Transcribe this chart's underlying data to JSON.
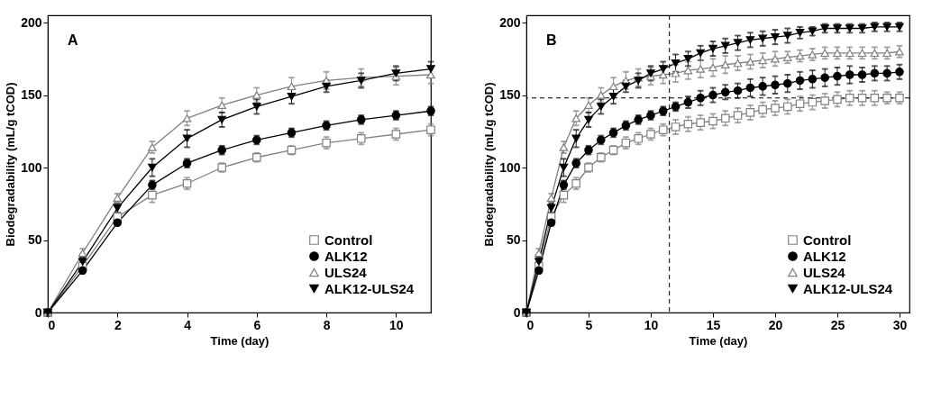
{
  "chart_data": [
    {
      "type": "line",
      "annotations": [
        "A"
      ],
      "xlabel": "Time (day)",
      "ylabel": "Biodegradability (mL/g tCOD)",
      "x": [
        0,
        1,
        2,
        3,
        4,
        5,
        6,
        7,
        8,
        9,
        10,
        11
      ],
      "xlim": [
        0,
        11
      ],
      "xticks": [
        0,
        2,
        4,
        6,
        8,
        10
      ],
      "ylim": [
        0,
        205
      ],
      "yticks": [
        0,
        50,
        100,
        150,
        200
      ],
      "grid": false,
      "legend": "bottom right",
      "line_style": "solid",
      "series": [
        {
          "name": "Control",
          "color": "#808080",
          "marker": "square",
          "values": [
            0,
            32,
            66,
            81,
            89,
            100,
            107,
            112,
            117,
            120,
            123,
            126
          ],
          "errors": [
            null,
            3,
            3,
            5,
            4,
            3,
            3,
            3,
            4,
            4,
            4,
            4
          ]
        },
        {
          "name": "ALK12",
          "color": "#000000",
          "marker": "circle",
          "values": [
            0,
            29,
            62,
            88,
            103,
            112,
            119,
            124,
            129,
            133,
            136,
            139
          ],
          "errors": [
            null,
            2,
            2,
            3,
            3,
            3,
            3,
            3,
            3,
            3,
            3,
            3
          ]
        },
        {
          "name": "ULS24",
          "color": "#808080",
          "marker": "triangle",
          "values": [
            0,
            41,
            79,
            114,
            134,
            143,
            150,
            156,
            160,
            162,
            163,
            164
          ],
          "errors": [
            null,
            3,
            3,
            4,
            5,
            5,
            5,
            6,
            6,
            6,
            6,
            6
          ]
        },
        {
          "name": "ALK12-ULS24",
          "color": "#000000",
          "marker": "triangle-down",
          "values": [
            0,
            35,
            72,
            100,
            120,
            133,
            142,
            149,
            156,
            160,
            165,
            168
          ],
          "errors": [
            null,
            3,
            3,
            6,
            6,
            5,
            5,
            5,
            4,
            5,
            5,
            5
          ]
        }
      ]
    },
    {
      "type": "line",
      "annotations": [
        "B"
      ],
      "xlabel": "Time (day)",
      "ylabel": "Biodegradability (mL/g tCOD)",
      "x": [
        0,
        1,
        2,
        3,
        4,
        5,
        6,
        7,
        8,
        9,
        10,
        11,
        12,
        13,
        14,
        15,
        16,
        17,
        18,
        19,
        20,
        21,
        22,
        23,
        24,
        25,
        26,
        27,
        28,
        29,
        30
      ],
      "xlim": [
        0,
        30.8
      ],
      "xticks": [
        0,
        5,
        10,
        15,
        20,
        25,
        30
      ],
      "ylim": [
        0,
        205
      ],
      "yticks": [
        0,
        50,
        100,
        150,
        200
      ],
      "grid": false,
      "legend": "bottom right",
      "line_style": "solid",
      "ref_lines": [
        {
          "axis": "y",
          "value": 148,
          "line_style": "dashed",
          "color": "#000000"
        },
        {
          "axis": "x",
          "value": 11.5,
          "line_style": "dashed",
          "color": "#000000"
        }
      ],
      "series": [
        {
          "name": "Control",
          "color": "#808080",
          "marker": "square",
          "values": [
            0,
            32,
            66,
            81,
            89,
            100,
            107,
            112,
            117,
            120,
            123,
            126,
            128,
            130,
            131,
            132,
            134,
            136,
            138,
            140,
            141,
            142,
            144,
            145,
            146,
            147,
            148,
            148,
            148,
            148,
            148
          ],
          "errors": [
            null,
            3,
            3,
            5,
            4,
            3,
            3,
            3,
            4,
            4,
            4,
            4,
            5,
            5,
            5,
            5,
            5,
            5,
            5,
            5,
            5,
            5,
            5,
            5,
            5,
            5,
            5,
            5,
            5,
            4,
            4
          ]
        },
        {
          "name": "ALK12",
          "color": "#000000",
          "marker": "circle",
          "values": [
            0,
            29,
            62,
            88,
            103,
            112,
            119,
            124,
            129,
            133,
            136,
            139,
            142,
            145,
            148,
            150,
            152,
            153,
            155,
            156,
            157,
            158,
            160,
            161,
            162,
            163,
            164,
            164,
            165,
            165,
            166
          ],
          "errors": [
            null,
            2,
            2,
            3,
            3,
            3,
            3,
            3,
            3,
            3,
            3,
            3,
            3,
            4,
            5,
            5,
            5,
            5,
            6,
            6,
            6,
            6,
            6,
            6,
            6,
            6,
            6,
            5,
            5,
            5,
            5
          ]
        },
        {
          "name": "ULS24",
          "color": "#808080",
          "marker": "triangle",
          "values": [
            0,
            41,
            79,
            114,
            134,
            143,
            150,
            156,
            160,
            162,
            163,
            164,
            165,
            167,
            168,
            169,
            171,
            172,
            173,
            174,
            175,
            176,
            177,
            178,
            179,
            179,
            179,
            179,
            179,
            179,
            180
          ],
          "errors": [
            null,
            3,
            3,
            4,
            5,
            5,
            5,
            6,
            6,
            6,
            6,
            6,
            6,
            6,
            6,
            6,
            6,
            5,
            5,
            5,
            5,
            4,
            4,
            4,
            4,
            4,
            4,
            4,
            4,
            4,
            4
          ]
        },
        {
          "name": "ALK12-ULS24",
          "color": "#000000",
          "marker": "triangle-down",
          "values": [
            0,
            35,
            72,
            100,
            120,
            133,
            142,
            149,
            156,
            160,
            165,
            168,
            172,
            175,
            179,
            182,
            184,
            186,
            188,
            189,
            190,
            191,
            193,
            194,
            196,
            196,
            196,
            196,
            197,
            197,
            197
          ],
          "errors": [
            null,
            3,
            3,
            6,
            6,
            5,
            5,
            5,
            4,
            5,
            5,
            5,
            6,
            5,
            5,
            5,
            5,
            5,
            5,
            5,
            5,
            5,
            4,
            3,
            3,
            3,
            3,
            3,
            3,
            3,
            3
          ]
        }
      ]
    }
  ]
}
